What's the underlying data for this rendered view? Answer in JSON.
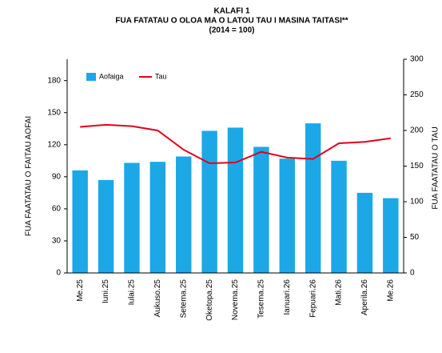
{
  "chart_data": {
    "type": "bar_line",
    "title": "KALAFI 1",
    "subtitle": "FUA FATATAU O OLOA MA O LATOU TAU I MASINA TAITASI**",
    "note": "(2014 = 100)",
    "ylabel": "FUA FAATATAU O FAITAU AOFAI",
    "y2label": "FUA FAATATAU O TAU",
    "categories": [
      "Me.25",
      "Iuni.25",
      "Iulai.25",
      "Aukuso.25",
      "Setema.25",
      "Oketopa.25",
      "Novema.25",
      "Tesema.25",
      "Ianuari.26",
      "Fepuari.26",
      "Mati.26",
      "Aperila.26",
      "Me.26"
    ],
    "series": [
      {
        "name": "Aofaiga",
        "type": "bar",
        "color": "#1ca8e6",
        "values": [
          96,
          87,
          103,
          104,
          109,
          133,
          136,
          118,
          107,
          140,
          105,
          75,
          70
        ]
      },
      {
        "name": "Tau",
        "type": "line",
        "axis": "y2",
        "color": "#e3001b",
        "values": [
          205,
          208,
          206,
          200,
          173,
          154,
          155,
          170,
          162,
          160,
          182,
          184,
          189
        ]
      }
    ],
    "ylim": [
      0,
      200
    ],
    "yticks": [
      0,
      30,
      60,
      90,
      120,
      150,
      180
    ],
    "y2lim": [
      0,
      300
    ],
    "y2ticks": [
      0,
      50,
      100,
      150,
      200,
      250,
      300
    ],
    "legend": "top-left"
  }
}
